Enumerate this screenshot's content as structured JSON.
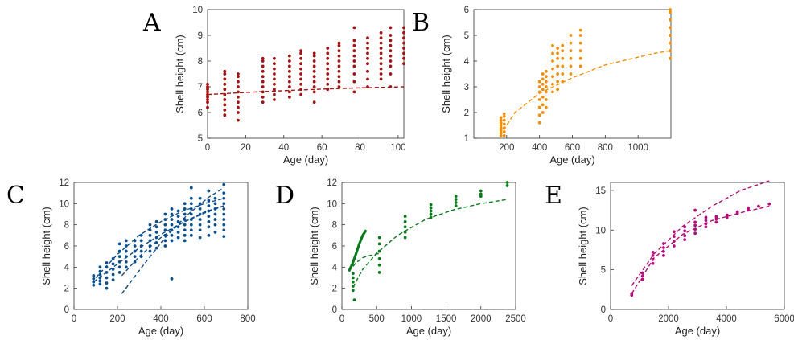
{
  "chart_data": [
    {
      "panel": "A",
      "type": "scatter",
      "color": "#a01414",
      "xlabel": "Age (day)",
      "ylabel": "Shell height (cm)",
      "xlim": [
        0,
        103
      ],
      "ylim": [
        5,
        10
      ],
      "xticks": [
        0,
        20,
        40,
        60,
        80,
        100
      ],
      "yticks": [
        5,
        6,
        7,
        8,
        9,
        10
      ],
      "groups": [
        {
          "x": 0,
          "values": [
            6.2,
            6.4,
            6.5,
            6.6,
            6.7,
            6.8,
            6.9,
            7.0,
            7.1
          ]
        },
        {
          "x": 9,
          "values": [
            5.9,
            6.1,
            6.3,
            6.5,
            6.7,
            6.9,
            7.1,
            7.3,
            7.5,
            7.6
          ]
        },
        {
          "x": 16,
          "values": [
            5.7,
            6.0,
            6.2,
            6.4,
            6.6,
            6.8,
            7.0,
            7.2,
            7.4,
            7.5
          ]
        },
        {
          "x": 29,
          "values": [
            6.4,
            6.6,
            6.8,
            7.0,
            7.2,
            7.4,
            7.6,
            7.8,
            8.0,
            8.1
          ]
        },
        {
          "x": 35,
          "values": [
            6.5,
            6.7,
            6.9,
            7.1,
            7.3,
            7.5,
            7.7,
            7.9,
            8.1
          ]
        },
        {
          "x": 43,
          "values": [
            6.6,
            6.8,
            7.0,
            7.2,
            7.4,
            7.6,
            7.8,
            8.0,
            8.2
          ]
        },
        {
          "x": 49,
          "values": [
            6.7,
            6.9,
            7.1,
            7.3,
            7.5,
            7.7,
            7.9,
            8.1,
            8.3,
            8.4
          ]
        },
        {
          "x": 56,
          "values": [
            6.4,
            6.8,
            7.0,
            7.2,
            7.4,
            7.6,
            7.8,
            8.0,
            8.2,
            8.3
          ]
        },
        {
          "x": 63,
          "values": [
            6.9,
            7.1,
            7.3,
            7.5,
            7.7,
            7.9,
            8.1,
            8.3,
            8.5
          ]
        },
        {
          "x": 69,
          "values": [
            7.0,
            7.2,
            7.4,
            7.6,
            7.8,
            8.0,
            8.2,
            8.4,
            8.6,
            8.7
          ]
        },
        {
          "x": 77,
          "values": [
            6.8,
            7.2,
            7.5,
            7.8,
            8.0,
            8.2,
            8.4,
            8.6,
            8.8,
            9.3
          ]
        },
        {
          "x": 84,
          "values": [
            7.0,
            7.3,
            7.6,
            7.9,
            8.1,
            8.3,
            8.5,
            8.7,
            8.9
          ]
        },
        {
          "x": 91,
          "values": [
            7.3,
            7.5,
            7.7,
            7.9,
            8.1,
            8.3,
            8.5,
            8.7,
            8.9,
            9.1
          ]
        },
        {
          "x": 96,
          "values": [
            7.0,
            7.5,
            7.8,
            8.0,
            8.2,
            8.4,
            8.6,
            8.8,
            9.0,
            9.3
          ]
        },
        {
          "x": 103,
          "values": [
            7.9,
            8.1,
            8.3,
            8.5,
            8.7,
            8.9,
            9.1,
            9.3
          ]
        }
      ],
      "curves": [
        {
          "x": [
            0,
            20,
            40,
            60,
            80,
            103
          ],
          "y": [
            6.7,
            6.78,
            6.85,
            6.91,
            6.96,
            7.0
          ]
        }
      ]
    },
    {
      "panel": "B",
      "type": "scatter",
      "color": "#f0900a",
      "xlabel": "Age (day)",
      "ylabel": "Shell height (cm)",
      "xlim": [
        0,
        1200
      ],
      "ylim": [
        1,
        6
      ],
      "xticks": [
        200,
        400,
        600,
        800,
        1000
      ],
      "yticks": [
        1,
        2,
        3,
        4,
        5,
        6
      ],
      "groups": [
        {
          "x": 165,
          "values": [
            1.1,
            1.2,
            1.3,
            1.4,
            1.5,
            1.6,
            1.7,
            1.8
          ]
        },
        {
          "x": 185,
          "values": [
            1.1,
            1.25,
            1.4,
            1.55,
            1.7,
            1.85,
            1.95
          ]
        },
        {
          "x": 400,
          "values": [
            1.6,
            1.9,
            2.2,
            2.5,
            2.8,
            3.0,
            3.2
          ]
        },
        {
          "x": 420,
          "values": [
            2.0,
            2.3,
            2.6,
            2.9,
            3.1,
            3.3,
            3.5
          ]
        },
        {
          "x": 440,
          "values": [
            2.2,
            2.5,
            2.8,
            3.0,
            3.2,
            3.4,
            3.6
          ]
        },
        {
          "x": 480,
          "values": [
            2.8,
            3.1,
            3.4,
            3.7,
            4.0,
            4.3,
            4.6
          ]
        },
        {
          "x": 510,
          "values": [
            2.9,
            3.2,
            3.5,
            3.8,
            4.1,
            4.3,
            4.5
          ]
        },
        {
          "x": 540,
          "values": [
            3.2,
            3.5,
            3.8,
            4.1,
            4.4,
            4.6
          ]
        },
        {
          "x": 590,
          "values": [
            3.5,
            3.8,
            4.1,
            4.4,
            4.7,
            5.0
          ]
        },
        {
          "x": 650,
          "values": [
            3.8,
            4.1,
            4.4,
            4.7,
            5.0,
            5.2
          ]
        },
        {
          "x": 1195,
          "values": [
            4.1,
            4.4,
            4.7,
            5.0,
            5.3,
            5.6,
            5.9,
            6.0
          ]
        }
      ],
      "curves": [
        {
          "x": [
            160,
            250,
            400,
            500,
            600,
            700,
            800,
            900,
            1000,
            1100,
            1195
          ],
          "y": [
            1.1,
            2.0,
            2.75,
            3.05,
            3.35,
            3.6,
            3.85,
            4.0,
            4.15,
            4.3,
            4.4
          ]
        }
      ]
    },
    {
      "panel": "C",
      "type": "scatter",
      "color": "#0d4f8b",
      "xlabel": "Age (day)",
      "ylabel": "Shell height (cm)",
      "xlim": [
        0,
        800
      ],
      "ylim": [
        0,
        12
      ],
      "xticks": [
        0,
        200,
        400,
        600,
        800
      ],
      "yticks": [
        0,
        2,
        4,
        6,
        8,
        10,
        12
      ],
      "groups": [
        {
          "x": 90,
          "values": [
            2.3,
            2.6,
            2.9,
            3.2
          ]
        },
        {
          "x": 120,
          "values": [
            2.4,
            2.7,
            3.0,
            3.3,
            3.6,
            4.0
          ]
        },
        {
          "x": 150,
          "values": [
            2.0,
            2.5,
            3.0,
            3.5,
            4.0,
            4.4
          ]
        },
        {
          "x": 180,
          "values": [
            2.8,
            3.3,
            3.8,
            4.3,
            4.8
          ]
        },
        {
          "x": 210,
          "values": [
            3.5,
            4.0,
            4.5,
            5.0,
            5.5,
            6.2
          ]
        },
        {
          "x": 240,
          "values": [
            4.0,
            4.5,
            5.0,
            5.5,
            6.0,
            6.5
          ]
        },
        {
          "x": 280,
          "values": [
            4.5,
            5.0,
            5.5,
            6.0,
            6.5
          ]
        },
        {
          "x": 310,
          "values": [
            5.0,
            5.5,
            6.0,
            6.5,
            7.0
          ]
        },
        {
          "x": 350,
          "values": [
            5.5,
            6.0,
            6.5,
            7.0,
            7.5,
            8.0
          ]
        },
        {
          "x": 380,
          "values": [
            5.8,
            6.3,
            6.8,
            7.3,
            7.8,
            8.3
          ]
        },
        {
          "x": 420,
          "values": [
            6.0,
            6.5,
            7.0,
            7.5,
            8.0,
            8.5,
            9.0
          ]
        },
        {
          "x": 450,
          "values": [
            2.9,
            6.5,
            7.0,
            7.5,
            8.0,
            8.5,
            9.0,
            9.5
          ]
        },
        {
          "x": 480,
          "values": [
            6.8,
            7.3,
            7.8,
            8.3,
            8.8,
            9.3
          ]
        },
        {
          "x": 510,
          "values": [
            6.5,
            7.0,
            7.5,
            8.0,
            8.5,
            9.0,
            9.5,
            10.0
          ]
        },
        {
          "x": 540,
          "values": [
            7.0,
            7.5,
            8.0,
            8.5,
            9.0,
            9.5,
            10.0,
            10.5,
            11.5
          ]
        },
        {
          "x": 580,
          "values": [
            6.8,
            7.5,
            8.0,
            8.5,
            9.0,
            9.5,
            10.0,
            10.5
          ]
        },
        {
          "x": 620,
          "values": [
            7.0,
            7.8,
            8.3,
            8.8,
            9.3,
            9.8,
            10.3,
            11.2
          ]
        },
        {
          "x": 650,
          "values": [
            7.3,
            8.0,
            8.5,
            9.0,
            9.5,
            10.0,
            10.5
          ]
        },
        {
          "x": 690,
          "values": [
            6.9,
            7.5,
            8.0,
            8.5,
            9.0,
            9.5,
            10.0,
            10.5,
            11.0,
            11.8
          ]
        }
      ],
      "curves": [
        {
          "x": [
            90,
            200,
            300,
            400,
            500,
            600,
            690
          ],
          "y": [
            2.6,
            4.3,
            5.8,
            7.1,
            8.2,
            9.1,
            9.8
          ]
        },
        {
          "x": [
            220,
            320,
            420,
            520,
            620,
            690
          ],
          "y": [
            1.5,
            4.2,
            6.8,
            8.9,
            10.6,
            11.5
          ]
        },
        {
          "x": [
            100,
            200,
            300,
            400,
            500,
            600,
            690
          ],
          "y": [
            3.0,
            5.2,
            7.0,
            8.3,
            9.3,
            10.0,
            10.5
          ]
        },
        {
          "x": [
            220,
            300,
            400,
            500,
            600,
            690
          ],
          "y": [
            3.2,
            5.0,
            6.8,
            8.2,
            9.2,
            9.8
          ]
        }
      ]
    },
    {
      "panel": "D",
      "type": "scatter",
      "color": "#0b7a1c",
      "xlabel": "Age (day)",
      "ylabel": "Shell height (cm)",
      "xlim": [
        0,
        2500
      ],
      "ylim": [
        0,
        12
      ],
      "xticks": [
        0,
        500,
        1000,
        1500,
        2000,
        2500
      ],
      "yticks": [
        0,
        2,
        4,
        6,
        8,
        10,
        12
      ],
      "groups": [
        {
          "x": 160,
          "values": [
            1.8,
            2.2,
            2.6,
            3.0,
            3.4
          ]
        },
        {
          "x": 180,
          "values": [
            0.9
          ]
        },
        {
          "x": 540,
          "values": [
            3.5,
            4.2,
            4.8,
            5.5,
            6.2,
            6.8
          ]
        },
        {
          "x": 910,
          "values": [
            6.8,
            7.3,
            7.8,
            8.3,
            8.8
          ]
        },
        {
          "x": 1280,
          "values": [
            8.7,
            9.0,
            9.3,
            9.6,
            9.9
          ]
        },
        {
          "x": 1640,
          "values": [
            9.8,
            10.1,
            10.4,
            10.7
          ]
        },
        {
          "x": 2000,
          "values": [
            10.7,
            10.9,
            11.2
          ]
        },
        {
          "x": 2380,
          "values": [
            11.7,
            12.0
          ]
        }
      ],
      "curves": [
        {
          "x": [
            100,
            150,
            200,
            250,
            300,
            350
          ],
          "y": [
            3.6,
            4.3,
            5.2,
            6.2,
            7.0,
            7.5
          ],
          "style": "solid"
        },
        {
          "x": [
            160,
            300,
            500,
            800,
            1200,
            1600,
            2000,
            2380
          ],
          "y": [
            2.1,
            3.8,
            5.3,
            7.0,
            8.5,
            9.4,
            10.0,
            10.4
          ]
        },
        {
          "x": [
            100,
            200,
            300,
            400,
            540
          ],
          "y": [
            3.6,
            4.4,
            4.9,
            5.1,
            5.3
          ]
        }
      ]
    },
    {
      "panel": "E",
      "type": "scatter",
      "color": "#b0107a",
      "xlabel": "Age (day)",
      "ylabel": "Shell height (cm)",
      "xlim": [
        0,
        6000
      ],
      "ylim": [
        0,
        16
      ],
      "xticks": [
        0,
        2000,
        4000,
        6000
      ],
      "yticks": [
        0,
        5,
        10,
        15
      ],
      "groups": [
        {
          "x": 730,
          "values": [
            1.8,
            2.0
          ]
        },
        {
          "x": 1100,
          "values": [
            3.8,
            4.2,
            4.6
          ]
        },
        {
          "x": 1460,
          "values": [
            5.8,
            6.3,
            6.8,
            7.2
          ]
        },
        {
          "x": 1830,
          "values": [
            6.8,
            7.3,
            7.8,
            8.3
          ]
        },
        {
          "x": 2190,
          "values": [
            8.0,
            8.6,
            9.2,
            9.8
          ]
        },
        {
          "x": 2560,
          "values": [
            8.8,
            9.3,
            9.9,
            10.4
          ]
        },
        {
          "x": 2920,
          "values": [
            9.6,
            10.1,
            10.6,
            11.0,
            12.5
          ]
        },
        {
          "x": 3290,
          "values": [
            10.4,
            10.8,
            11.2,
            11.6
          ]
        },
        {
          "x": 3650,
          "values": [
            11.0,
            11.4,
            11.7
          ]
        },
        {
          "x": 4020,
          "values": [
            11.6,
            11.9
          ]
        },
        {
          "x": 4380,
          "values": [
            12.1,
            12.3
          ]
        },
        {
          "x": 4750,
          "values": [
            12.6,
            12.8
          ]
        },
        {
          "x": 5110,
          "values": [
            13.0
          ]
        },
        {
          "x": 5480,
          "values": [
            13.3
          ]
        }
      ],
      "curves": [
        {
          "x": [
            730,
            1500,
            2500,
            3500,
            4500,
            5480
          ],
          "y": [
            3.0,
            7.0,
            10.5,
            13.0,
            15.0,
            16.2
          ]
        },
        {
          "x": [
            730,
            1500,
            2500,
            3500,
            4500,
            5480
          ],
          "y": [
            2.0,
            6.5,
            9.5,
            11.2,
            12.2,
            13.0
          ]
        }
      ]
    }
  ]
}
